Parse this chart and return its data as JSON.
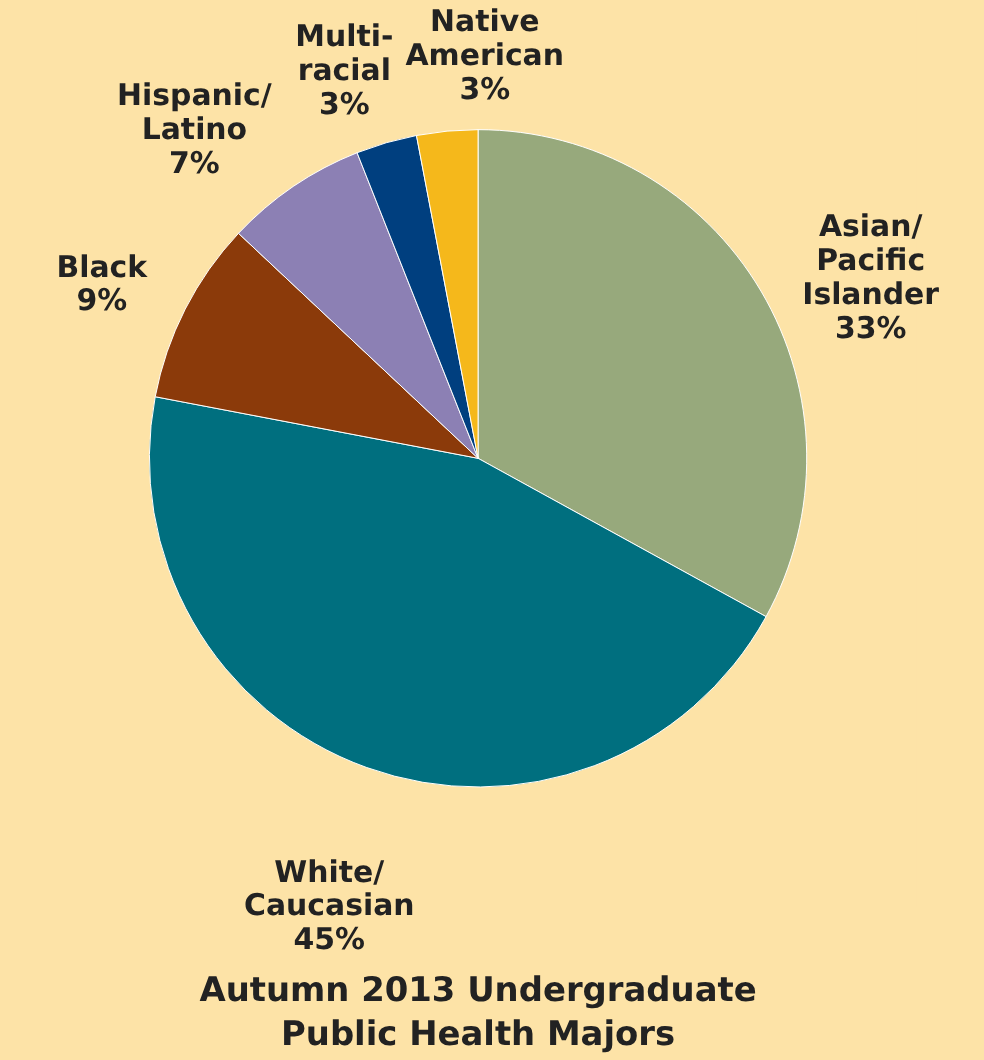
{
  "chart_data": {
    "type": "pie",
    "title": "Autumn 2013 Undergraduate Public Health Majors",
    "categories": [
      "Asian/ Pacific Islander",
      "White/ Caucasian",
      "Black",
      "Hispanic/ Latino",
      "Multi-racial",
      "Native American"
    ],
    "values": [
      33,
      45,
      9,
      7,
      3,
      3
    ],
    "value_labels": [
      "33%",
      "45%",
      "9%",
      "7%",
      "3%",
      "3%"
    ],
    "colors": [
      "#97a97c",
      "#006f7f",
      "#8b3a0a",
      "#8c80b4",
      "#003f7f",
      "#f5b81b"
    ],
    "legend": false
  }
}
